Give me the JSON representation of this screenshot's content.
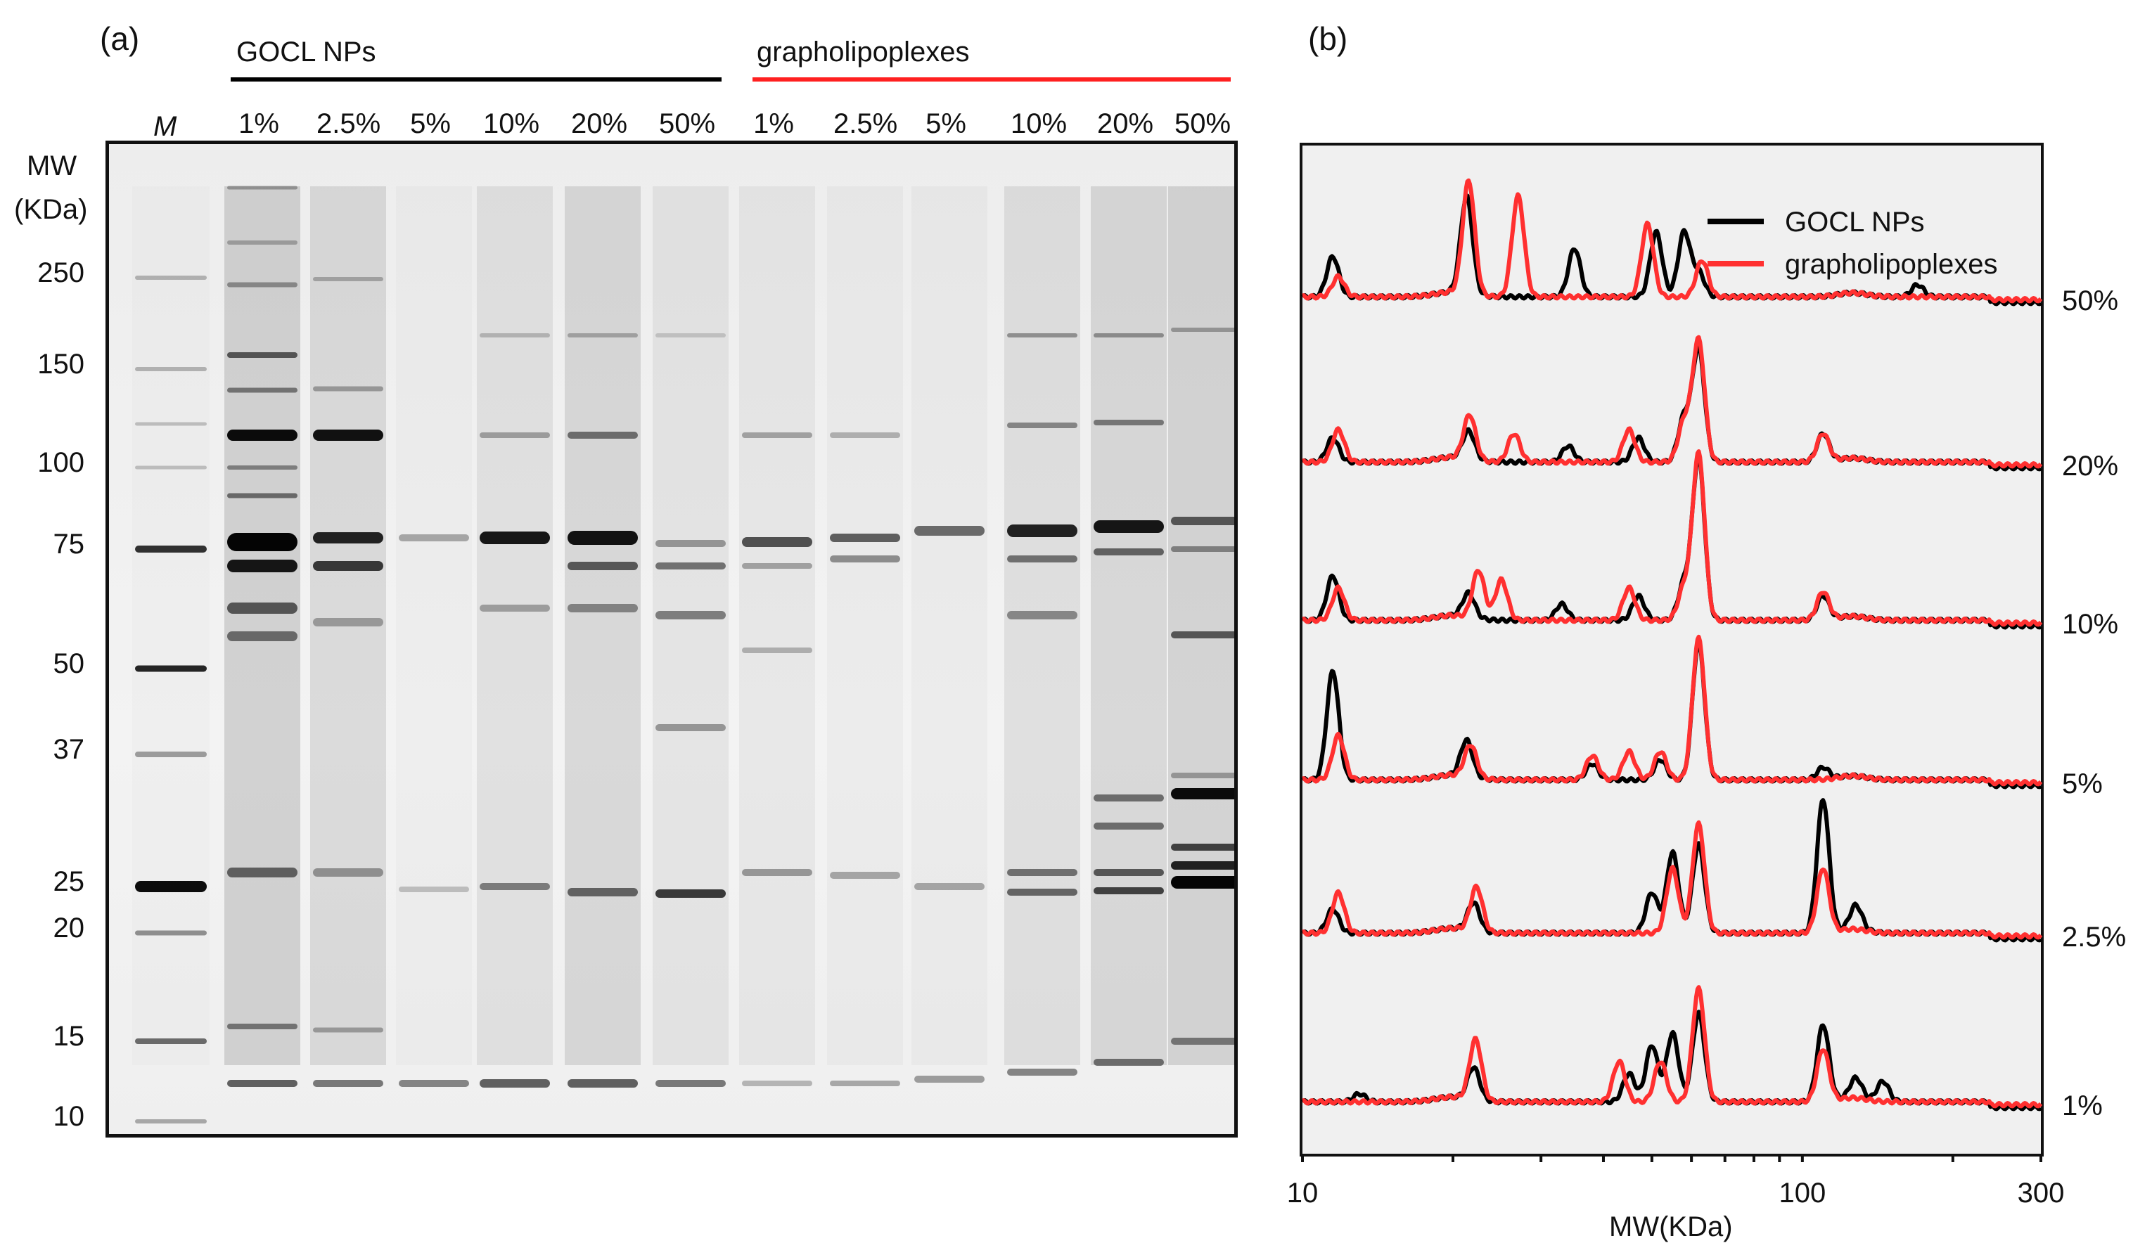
{
  "panel_a": {
    "label": "(a)",
    "groups": [
      {
        "name": "GOCL NPs",
        "color": "#000000"
      },
      {
        "name": "grapholipoplexes",
        "color": "#ff2020"
      }
    ],
    "marker_label": "M",
    "lane_labels": [
      "1%",
      "2.5%",
      "5%",
      "10%",
      "20%",
      "50%",
      "1%",
      "2.5%",
      "5%",
      "10%",
      "20%",
      "50%"
    ],
    "mw_title": [
      "MW",
      "(KDa)"
    ],
    "mw_ladder": [
      "250",
      "150",
      "100",
      "75",
      "50",
      "37",
      "25",
      "20",
      "15",
      "10"
    ]
  },
  "panel_b": {
    "label": "(b)",
    "x_title": "MW(KDa)",
    "x_ticks": [
      "10",
      "100",
      "300"
    ],
    "trace_labels": [
      "50%",
      "20%",
      "10%",
      "5%",
      "2.5%",
      "1%"
    ]
  },
  "chart_data": {
    "type": "line",
    "xlabel": "MW(KDa)",
    "x_scale": "log",
    "xlim": [
      10,
      300
    ],
    "legend": "top-right",
    "series": [
      {
        "name": "GOCL NPs",
        "color": "#000000"
      },
      {
        "name": "grapholipoplexes",
        "color": "#ff3030"
      }
    ],
    "traces": [
      "50%",
      "20%",
      "10%",
      "5%",
      "2.5%",
      "1%"
    ],
    "peaks_kda": {
      "50%": {
        "GOCL NPs": [
          [
            11.5,
            0.5
          ],
          [
            21.3,
            1.2
          ],
          [
            35,
            0.6
          ],
          [
            51,
            0.8
          ],
          [
            58,
            0.8
          ],
          [
            62,
            0.3
          ],
          [
            170,
            0.15
          ]
        ],
        "grapholipoplexes": [
          [
            11.8,
            0.25
          ],
          [
            21.5,
            1.4
          ],
          [
            27,
            1.25
          ],
          [
            49,
            0.9
          ],
          [
            63,
            0.45
          ]
        ]
      },
      "20%": {
        "GOCL NPs": [
          [
            11.5,
            0.3
          ],
          [
            21.5,
            0.35
          ],
          [
            34,
            0.2
          ],
          [
            47,
            0.3
          ],
          [
            58,
            0.55
          ],
          [
            62,
            1.4
          ],
          [
            110,
            0.35
          ]
        ],
        "grapholipoplexes": [
          [
            11.8,
            0.4
          ],
          [
            21.6,
            0.55
          ],
          [
            26.5,
            0.35
          ],
          [
            45,
            0.4
          ],
          [
            58,
            0.5
          ],
          [
            62,
            1.5
          ],
          [
            110,
            0.35
          ]
        ]
      },
      "10%": {
        "GOCL NPs": [
          [
            11.5,
            0.55
          ],
          [
            21.5,
            0.3
          ],
          [
            33,
            0.2
          ],
          [
            47,
            0.3
          ],
          [
            58,
            0.45
          ],
          [
            62,
            2.0
          ],
          [
            110,
            0.3
          ]
        ],
        "grapholipoplexes": [
          [
            11.8,
            0.4
          ],
          [
            22.5,
            0.6
          ],
          [
            25,
            0.5
          ],
          [
            45,
            0.4
          ],
          [
            58,
            0.4
          ],
          [
            62,
            2.05
          ],
          [
            110,
            0.35
          ]
        ]
      },
      "5%": {
        "GOCL NPs": [
          [
            11.5,
            1.35
          ],
          [
            21.3,
            0.45
          ],
          [
            38,
            0.2
          ],
          [
            52,
            0.25
          ],
          [
            62,
            1.7
          ],
          [
            110,
            0.15
          ]
        ],
        "grapholipoplexes": [
          [
            11.8,
            0.55
          ],
          [
            21.7,
            0.4
          ],
          [
            38,
            0.3
          ],
          [
            45,
            0.35
          ],
          [
            52,
            0.35
          ],
          [
            62,
            1.75
          ]
        ]
      },
      "2.5%": {
        "GOCL NPs": [
          [
            11.5,
            0.3
          ],
          [
            22,
            0.35
          ],
          [
            50,
            0.5
          ],
          [
            55,
            1.0
          ],
          [
            62,
            1.1
          ],
          [
            110,
            1.65
          ],
          [
            128,
            0.3
          ]
        ],
        "grapholipoplexes": [
          [
            11.8,
            0.5
          ],
          [
            22.3,
            0.55
          ],
          [
            55,
            0.8
          ],
          [
            62,
            1.35
          ],
          [
            110,
            0.8
          ]
        ]
      },
      "1%": {
        "GOCL NPs": [
          [
            13,
            0.1
          ],
          [
            22,
            0.4
          ],
          [
            45,
            0.35
          ],
          [
            50,
            0.7
          ],
          [
            55,
            0.85
          ],
          [
            62,
            1.1
          ],
          [
            110,
            0.95
          ],
          [
            128,
            0.25
          ],
          [
            145,
            0.25
          ]
        ],
        "grapholipoplexes": [
          [
            22.2,
            0.75
          ],
          [
            43,
            0.5
          ],
          [
            52,
            0.5
          ],
          [
            62,
            1.4
          ],
          [
            110,
            0.65
          ]
        ]
      }
    }
  }
}
